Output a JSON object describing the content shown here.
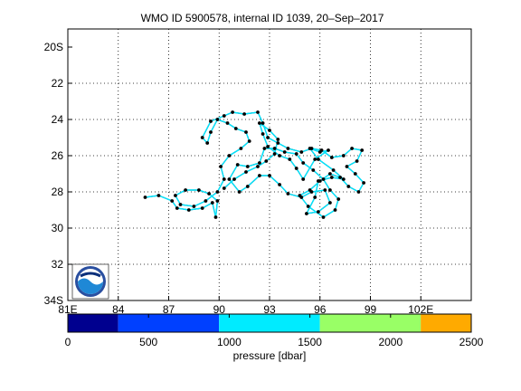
{
  "title": "WMO ID 5900578, internal ID 1039, 20–Sep–2017",
  "map": {
    "lon_range": [
      81,
      105
    ],
    "lat_range": [
      -34,
      -19
    ],
    "grid": "dotted",
    "lat_ticks": [
      {
        "value": -20,
        "label": "20S"
      },
      {
        "value": -22,
        "label": "22"
      },
      {
        "value": -24,
        "label": "24"
      },
      {
        "value": -26,
        "label": "26"
      },
      {
        "value": -28,
        "label": "28"
      },
      {
        "value": -30,
        "label": "30"
      },
      {
        "value": -32,
        "label": "32"
      },
      {
        "value": -34,
        "label": "34S"
      }
    ],
    "lon_ticks": [
      {
        "value": 81,
        "label": "81E"
      },
      {
        "value": 84,
        "label": "84"
      },
      {
        "value": 87,
        "label": "87"
      },
      {
        "value": 90,
        "label": "90"
      },
      {
        "value": 93,
        "label": "93"
      },
      {
        "value": 96,
        "label": "96"
      },
      {
        "value": 99,
        "label": "99"
      },
      {
        "value": 102,
        "label": "102E"
      }
    ],
    "logo": "noaa-logo",
    "track_colors": {
      "line": "#00e5ff",
      "point": "#000000"
    },
    "track": [
      [
        85.6,
        -28.3
      ],
      [
        86.4,
        -28.2
      ],
      [
        87.2,
        -28.5
      ],
      [
        87.5,
        -28.9
      ],
      [
        88.2,
        -29.0
      ],
      [
        89.0,
        -28.9
      ],
      [
        89.6,
        -28.6
      ],
      [
        89.8,
        -29.4
      ],
      [
        89.9,
        -28.5
      ],
      [
        89.4,
        -28.1
      ],
      [
        88.8,
        -27.9
      ],
      [
        88.0,
        -27.9
      ],
      [
        87.4,
        -28.2
      ],
      [
        87.7,
        -28.7
      ],
      [
        88.5,
        -28.8
      ],
      [
        89.2,
        -28.5
      ],
      [
        89.9,
        -28.0
      ],
      [
        90.3,
        -27.3
      ],
      [
        90.1,
        -26.6
      ],
      [
        90.6,
        -26.0
      ],
      [
        91.3,
        -25.6
      ],
      [
        91.8,
        -25.2
      ],
      [
        91.6,
        -24.7
      ],
      [
        91.0,
        -24.5
      ],
      [
        90.5,
        -24.2
      ],
      [
        89.9,
        -24.0
      ],
      [
        89.5,
        -24.7
      ],
      [
        89.3,
        -25.3
      ],
      [
        89.0,
        -25.0
      ],
      [
        89.5,
        -24.1
      ],
      [
        90.3,
        -23.8
      ],
      [
        90.8,
        -23.6
      ],
      [
        91.5,
        -23.7
      ],
      [
        92.3,
        -23.6
      ],
      [
        92.6,
        -24.2
      ],
      [
        92.9,
        -25.0
      ],
      [
        93.5,
        -25.3
      ],
      [
        94.1,
        -25.6
      ],
      [
        94.9,
        -25.8
      ],
      [
        95.5,
        -25.6
      ],
      [
        96.1,
        -25.7
      ],
      [
        96.7,
        -26.1
      ],
      [
        97.4,
        -26.0
      ],
      [
        97.9,
        -25.6
      ],
      [
        98.5,
        -25.7
      ],
      [
        98.2,
        -26.3
      ],
      [
        97.6,
        -26.6
      ],
      [
        98.1,
        -27.0
      ],
      [
        98.6,
        -27.5
      ],
      [
        98.3,
        -28.0
      ],
      [
        97.7,
        -27.7
      ],
      [
        97.2,
        -27.2
      ],
      [
        96.6,
        -27.0
      ],
      [
        96.0,
        -27.4
      ],
      [
        95.4,
        -27.9
      ],
      [
        94.8,
        -28.2
      ],
      [
        95.3,
        -28.8
      ],
      [
        96.2,
        -29.4
      ],
      [
        96.9,
        -29.0
      ],
      [
        97.1,
        -28.4
      ],
      [
        96.6,
        -27.9
      ],
      [
        96.2,
        -27.3
      ],
      [
        95.6,
        -26.8
      ],
      [
        95.0,
        -26.4
      ],
      [
        94.6,
        -25.9
      ],
      [
        93.9,
        -25.8
      ],
      [
        93.3,
        -25.6
      ],
      [
        92.7,
        -25.6
      ],
      [
        92.4,
        -26.4
      ],
      [
        91.7,
        -26.6
      ],
      [
        91.1,
        -26.5
      ],
      [
        90.6,
        -27.3
      ],
      [
        91.2,
        -28.0
      ],
      [
        91.7,
        -27.7
      ],
      [
        92.4,
        -27.1
      ],
      [
        93.0,
        -27.1
      ],
      [
        93.6,
        -27.6
      ],
      [
        94.1,
        -28.1
      ],
      [
        94.9,
        -28.3
      ],
      [
        95.5,
        -28.0
      ],
      [
        96.3,
        -27.9
      ],
      [
        96.6,
        -28.6
      ],
      [
        95.9,
        -29.1
      ],
      [
        95.2,
        -29.2
      ],
      [
        95.7,
        -28.3
      ],
      [
        95.9,
        -27.4
      ],
      [
        96.7,
        -27.2
      ],
      [
        97.4,
        -27.3
      ],
      [
        96.8,
        -26.8
      ],
      [
        95.9,
        -26.2
      ],
      [
        95.4,
        -25.6
      ],
      [
        96.0,
        -25.8
      ],
      [
        96.5,
        -25.7
      ],
      [
        95.7,
        -26.2
      ],
      [
        95.0,
        -27.3
      ],
      [
        94.6,
        -26.7
      ],
      [
        94.2,
        -26.2
      ],
      [
        93.6,
        -26.0
      ],
      [
        92.9,
        -25.5
      ],
      [
        92.6,
        -24.8
      ],
      [
        92.4,
        -24.2
      ],
      [
        93.0,
        -24.6
      ],
      [
        93.5,
        -25.1
      ],
      [
        93.3,
        -25.9
      ],
      [
        92.8,
        -26.3
      ],
      [
        92.3,
        -26.6
      ],
      [
        91.6,
        -26.9
      ],
      [
        90.9,
        -27.3
      ],
      [
        90.3,
        -27.8
      ]
    ]
  },
  "colorbar": {
    "label": "pressure [dbar]",
    "range": [
      0,
      2500
    ],
    "tick_labels": [
      "0",
      "500",
      "1000",
      "1500",
      "2000",
      "2500"
    ],
    "tick_values": [
      0,
      500,
      1000,
      1500,
      2000,
      2500
    ],
    "bins": [
      {
        "from": 0,
        "to": 312,
        "color": "#00008f"
      },
      {
        "from": 312,
        "to": 937,
        "color": "#0040ff"
      },
      {
        "from": 937,
        "to": 1562,
        "color": "#00ebff"
      },
      {
        "from": 1562,
        "to": 2187,
        "color": "#99ff66"
      },
      {
        "from": 2187,
        "to": 2500,
        "color": "#ffaa00"
      }
    ]
  }
}
